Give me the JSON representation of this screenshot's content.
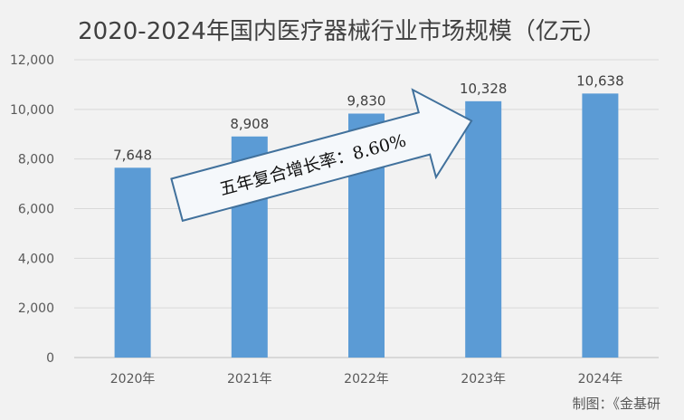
{
  "chart_data": {
    "type": "bar",
    "title": "2020-2024年国内医疗器械行业市场规模（亿元）",
    "categories": [
      "2020年",
      "2021年",
      "2022年",
      "2023年",
      "2024年"
    ],
    "values": [
      7648,
      8908,
      9830,
      10328,
      10638
    ],
    "value_labels": [
      "7,648",
      "8,908",
      "9,830",
      "10,328",
      "10,638"
    ],
    "y_ticks": [
      "0",
      "2,000",
      "4,000",
      "6,000",
      "8,000",
      "10,000",
      "12,000"
    ],
    "ylim": [
      0,
      12000
    ],
    "y_step": 2000,
    "grid": true,
    "legend": "none",
    "annotation": "五年复合增长率：8.60%",
    "bar_color": "#5b9bd5",
    "grid_color": "#d9d9d9",
    "arrow_stroke": "#41719c",
    "arrow_fill": "#f5f8fb"
  },
  "credit": "制图：《金基研"
}
